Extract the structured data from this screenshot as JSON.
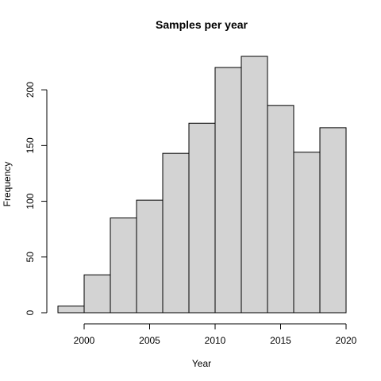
{
  "chart_data": {
    "type": "bar",
    "subtype": "histogram",
    "title": "Samples per year",
    "xlabel": "Year",
    "ylabel": "Frequency",
    "bins": [
      {
        "start": 1998,
        "end": 2000,
        "count": 6
      },
      {
        "start": 2000,
        "end": 2002,
        "count": 34
      },
      {
        "start": 2002,
        "end": 2004,
        "count": 85
      },
      {
        "start": 2004,
        "end": 2006,
        "count": 101
      },
      {
        "start": 2006,
        "end": 2008,
        "count": 143
      },
      {
        "start": 2008,
        "end": 2010,
        "count": 170
      },
      {
        "start": 2010,
        "end": 2012,
        "count": 220
      },
      {
        "start": 2012,
        "end": 2014,
        "count": 230
      },
      {
        "start": 2014,
        "end": 2016,
        "count": 186
      },
      {
        "start": 2016,
        "end": 2018,
        "count": 144
      },
      {
        "start": 2018,
        "end": 2020,
        "count": 166
      }
    ],
    "xlim": [
      1998,
      2020
    ],
    "ylim": [
      0,
      230
    ],
    "x_ticks": [
      2000,
      2005,
      2010,
      2015,
      2020
    ],
    "y_ticks": [
      0,
      50,
      100,
      150,
      200
    ],
    "grid": false,
    "bar_fill": "#d3d3d3",
    "bar_stroke": "#000000"
  }
}
